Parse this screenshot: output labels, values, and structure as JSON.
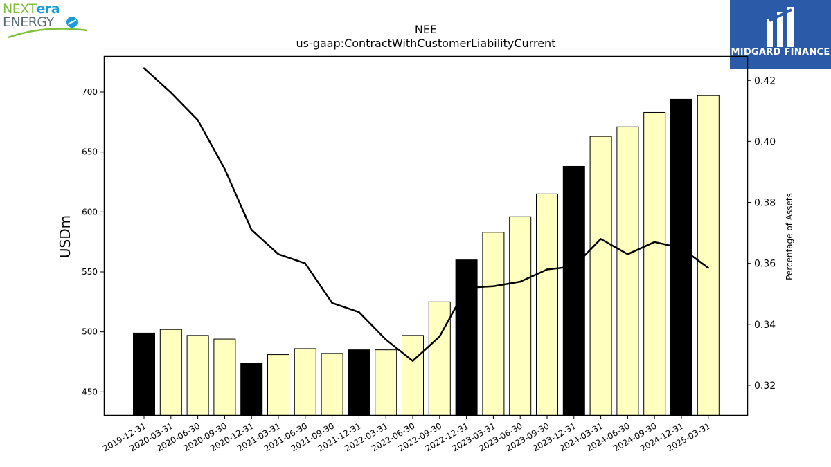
{
  "logos": {
    "left_part1": "NEXT",
    "left_part2": "era",
    "left_part3": "ENERGY",
    "right_text": "MIDGARD FINANCE"
  },
  "chart_data": {
    "type": "bar",
    "title": "NEE",
    "subtitle": "us-gaap:ContractWithCustomerLiabilityCurrent",
    "ylabel": "USDm",
    "y2label": "Percentage of Assets",
    "ylim": [
      430,
      730
    ],
    "y2lim": [
      0.31,
      0.428
    ],
    "yticks": [
      450,
      500,
      550,
      600,
      650,
      700
    ],
    "y2ticks": [
      0.32,
      0.34,
      0.36,
      0.38,
      0.4,
      0.42
    ],
    "categories": [
      "2019-12-31",
      "2020-03-31",
      "2020-06-30",
      "2020-09-30",
      "2020-12-31",
      "2021-03-31",
      "2021-06-30",
      "2021-09-30",
      "2021-12-31",
      "2022-03-31",
      "2022-06-30",
      "2022-09-30",
      "2022-12-31",
      "2023-03-31",
      "2023-06-30",
      "2023-09-30",
      "2023-12-31",
      "2024-03-31",
      "2024-06-30",
      "2024-09-30",
      "2024-12-31",
      "2025-03-31"
    ],
    "series": [
      {
        "type": "bar",
        "values": [
          499,
          502,
          497,
          494,
          474,
          481,
          486,
          482,
          485,
          485,
          497,
          525,
          560,
          583,
          596,
          615,
          638,
          663,
          671,
          683,
          694,
          697
        ],
        "highlight": [
          true,
          false,
          false,
          false,
          true,
          false,
          false,
          false,
          true,
          false,
          false,
          false,
          true,
          false,
          false,
          false,
          true,
          false,
          false,
          false,
          true,
          false
        ],
        "colors": {
          "annual": "#000000",
          "quarterly": "#ffffc0",
          "edge": "#000000"
        }
      },
      {
        "type": "line",
        "axis": "right",
        "values": [
          0.424,
          0.416,
          0.407,
          0.391,
          0.371,
          0.363,
          0.36,
          0.347,
          0.344,
          0.335,
          0.328,
          0.336,
          0.352,
          0.3525,
          0.354,
          0.358,
          0.359,
          0.368,
          0.363,
          0.367,
          0.365,
          0.3585
        ],
        "color": "#000000"
      }
    ]
  }
}
